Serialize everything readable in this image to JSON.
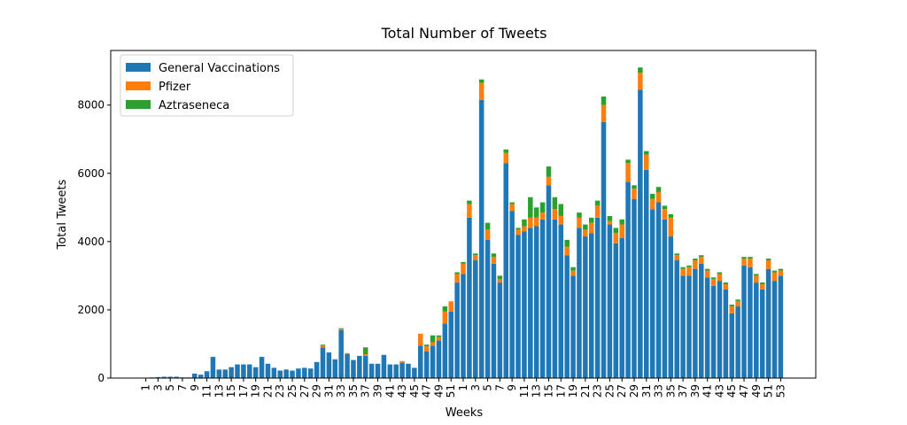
{
  "chart_data": {
    "type": "stacked_bar",
    "title": "Total Number of Tweets",
    "x_label": "Weeks",
    "y_label": "Total Tweets",
    "categories": [
      "1",
      null,
      "3",
      null,
      "5",
      null,
      "7",
      null,
      "9",
      null,
      "11",
      null,
      "13",
      null,
      "15",
      null,
      "17",
      null,
      "19",
      null,
      "21",
      null,
      "23",
      null,
      "25",
      null,
      "27",
      null,
      "29",
      null,
      "31",
      null,
      "33",
      null,
      "35",
      null,
      "37",
      null,
      "39",
      null,
      "41",
      null,
      "43",
      null,
      "45",
      null,
      "47",
      null,
      "49",
      null,
      "51",
      null,
      "1",
      null,
      "3",
      null,
      "5",
      null,
      "7",
      null,
      "9",
      null,
      "11",
      null,
      "13",
      null,
      "15",
      null,
      "17",
      null,
      "19",
      null,
      "21",
      null,
      "23",
      null,
      "25",
      null,
      "27",
      null,
      "29",
      null,
      "31",
      null,
      "33",
      null,
      "35",
      null,
      "37",
      null,
      "39",
      null,
      "41",
      null,
      "43",
      null,
      "45",
      null,
      "47",
      null,
      "49",
      null,
      "51",
      null,
      "53"
    ],
    "series": [
      {
        "name": "General Vaccinations",
        "color": "#1f77b4",
        "values": [
          10,
          20,
          30,
          40,
          40,
          40,
          20,
          20,
          130,
          100,
          200,
          620,
          250,
          250,
          320,
          400,
          400,
          400,
          320,
          620,
          420,
          300,
          220,
          250,
          220,
          280,
          300,
          280,
          470,
          900,
          750,
          550,
          1400,
          700,
          530,
          650,
          650,
          420,
          420,
          680,
          400,
          400,
          450,
          420,
          300,
          950,
          780,
          950,
          1100,
          1600,
          1950,
          2800,
          3050,
          4700,
          3450,
          8150,
          4050,
          3350,
          2800,
          6300,
          4900,
          4200,
          4300,
          4400,
          4450,
          4650,
          5650,
          4650,
          4500,
          3600,
          3000,
          4400,
          4150,
          4250,
          4700,
          7500,
          4500,
          3950,
          4100,
          5750,
          5250,
          8450,
          6100,
          4950,
          5150,
          4650,
          4150,
          3450,
          3000,
          3000,
          3200,
          3350,
          2950,
          2700,
          2850,
          2600,
          1900,
          2100,
          3300,
          3250,
          2800,
          2600,
          3200,
          2850,
          3000
        ]
      },
      {
        "name": "Pfizer",
        "color": "#ff7f0e",
        "values": [
          0,
          0,
          0,
          0,
          0,
          0,
          0,
          0,
          0,
          0,
          0,
          0,
          0,
          0,
          0,
          0,
          0,
          0,
          0,
          0,
          0,
          0,
          0,
          0,
          0,
          0,
          0,
          0,
          0,
          50,
          0,
          0,
          30,
          30,
          0,
          0,
          50,
          0,
          0,
          0,
          0,
          0,
          50,
          0,
          0,
          350,
          150,
          100,
          100,
          350,
          300,
          250,
          300,
          400,
          150,
          500,
          300,
          200,
          100,
          300,
          200,
          150,
          150,
          300,
          250,
          200,
          250,
          300,
          250,
          250,
          150,
          300,
          200,
          300,
          350,
          500,
          100,
          300,
          400,
          550,
          300,
          500,
          450,
          300,
          300,
          300,
          550,
          150,
          200,
          250,
          250,
          200,
          200,
          200,
          200,
          150,
          200,
          150,
          200,
          250,
          200,
          150,
          250,
          250,
          150
        ]
      },
      {
        "name": "Aztraseneca",
        "color": "#2ca02c",
        "values": [
          0,
          0,
          0,
          0,
          0,
          0,
          0,
          0,
          0,
          0,
          0,
          0,
          0,
          0,
          0,
          0,
          0,
          0,
          0,
          0,
          0,
          0,
          0,
          0,
          0,
          0,
          0,
          0,
          0,
          30,
          0,
          0,
          30,
          0,
          0,
          0,
          200,
          0,
          0,
          0,
          0,
          0,
          0,
          0,
          0,
          0,
          50,
          200,
          50,
          150,
          0,
          50,
          50,
          100,
          50,
          100,
          200,
          100,
          100,
          100,
          50,
          50,
          200,
          600,
          300,
          300,
          300,
          350,
          350,
          200,
          100,
          150,
          150,
          150,
          150,
          250,
          150,
          150,
          150,
          100,
          100,
          150,
          100,
          150,
          150,
          100,
          100,
          50,
          50,
          50,
          50,
          50,
          50,
          50,
          50,
          50,
          50,
          50,
          50,
          50,
          50,
          50,
          50,
          50,
          50
        ]
      }
    ],
    "ylim": [
      0,
      9600
    ],
    "yticks": [
      0,
      2000,
      4000,
      6000,
      8000
    ],
    "legend": "upper left"
  }
}
